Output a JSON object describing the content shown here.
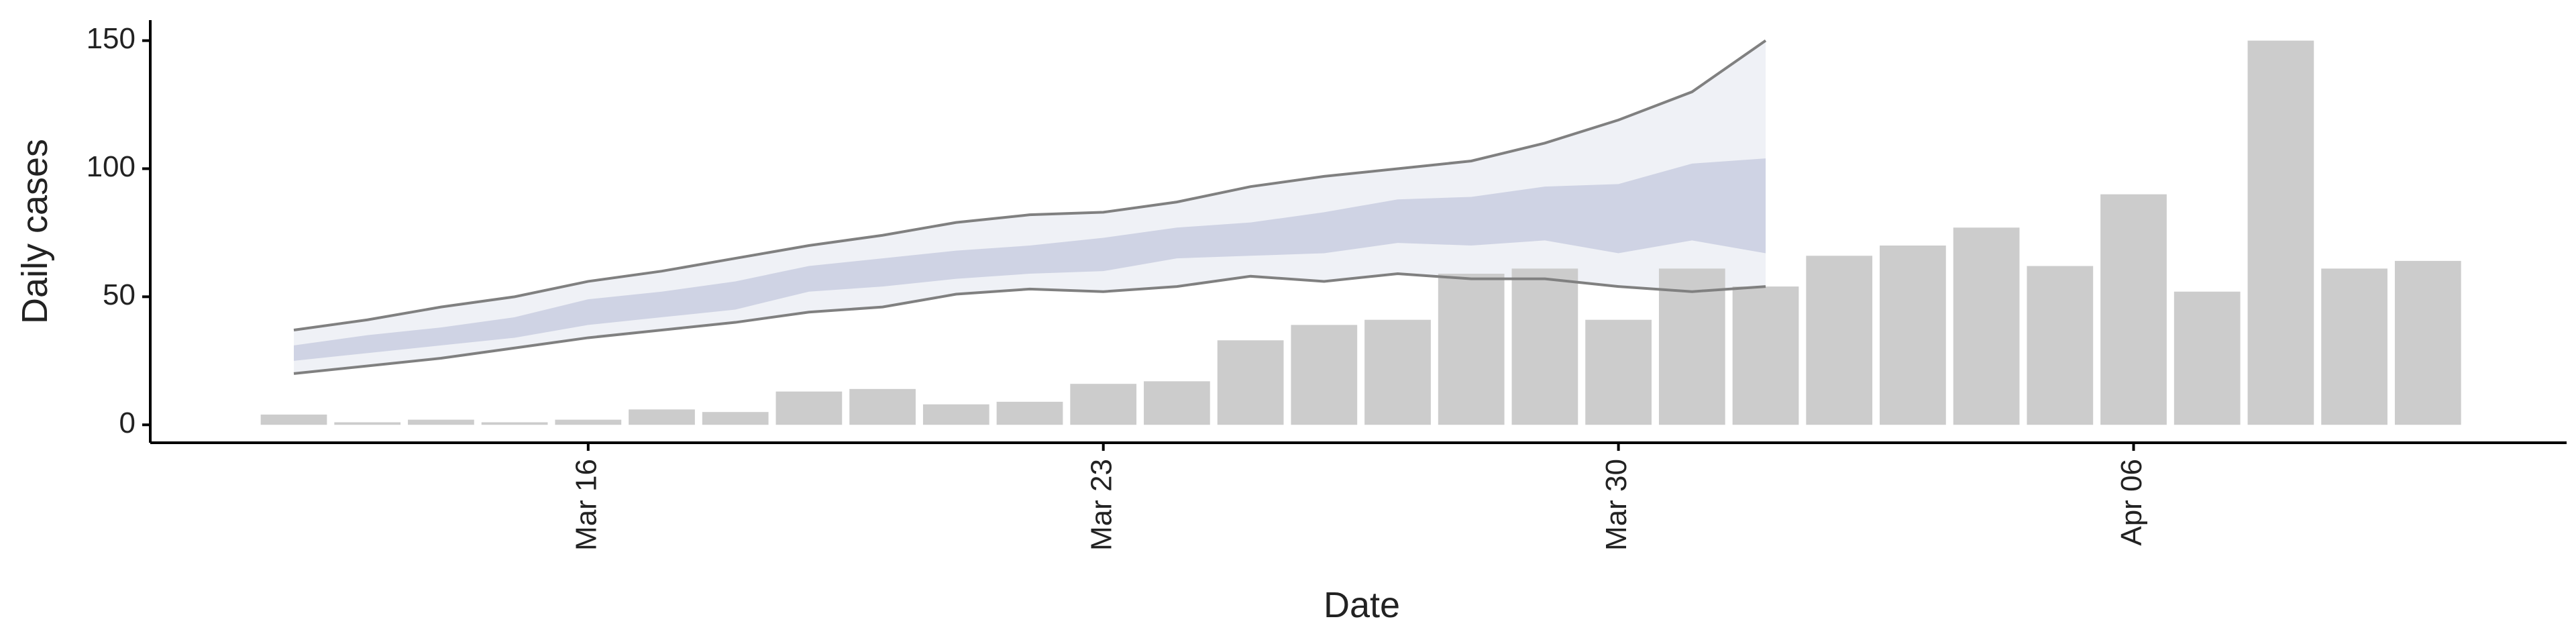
{
  "chart_data": {
    "type": "bar",
    "x_label": "Date",
    "y_label": "Daily cases",
    "categories": [
      null,
      null,
      null,
      null,
      "Mar 16",
      null,
      null,
      null,
      null,
      null,
      null,
      "Mar 23",
      null,
      null,
      null,
      null,
      null,
      null,
      "Mar 30",
      null,
      null,
      null,
      null,
      null,
      null,
      "Apr 06",
      null,
      null,
      null,
      null
    ],
    "values": [
      4,
      1,
      2,
      1,
      2,
      6,
      5,
      13,
      14,
      8,
      9,
      16,
      17,
      33,
      39,
      41,
      59,
      61,
      41,
      61,
      54,
      66,
      70,
      77,
      62,
      90,
      52,
      150,
      61,
      64
    ],
    "color": "#cccccc",
    "ribbons": [
      {
        "color": "#eceef4",
        "line_color": "#808080",
        "upper": [
          37,
          41,
          46,
          50,
          56,
          60,
          65,
          70,
          74,
          79,
          82,
          83,
          87,
          93,
          97,
          100,
          103,
          110,
          119,
          130,
          150,
          null,
          null,
          null,
          null,
          null,
          null,
          null,
          null,
          null
        ],
        "lower": [
          20,
          23,
          26,
          30,
          34,
          37,
          40,
          44,
          46,
          51,
          53,
          52,
          54,
          58,
          56,
          59,
          57,
          57,
          54,
          52,
          54,
          null,
          null,
          null,
          null,
          null,
          null,
          null,
          null,
          null
        ]
      },
      {
        "color": "#c9cee0",
        "upper": [
          31,
          35,
          38,
          42,
          49,
          52,
          56,
          62,
          65,
          68,
          70,
          73,
          77,
          79,
          83,
          88,
          89,
          93,
          94,
          102,
          104,
          null,
          null,
          null,
          null,
          null,
          null,
          null,
          null,
          null
        ],
        "lower": [
          25,
          28,
          31,
          34,
          39,
          42,
          45,
          52,
          54,
          57,
          59,
          60,
          65,
          66,
          67,
          71,
          70,
          72,
          67,
          72,
          67,
          null,
          null,
          null,
          null,
          null,
          null,
          null,
          null,
          null
        ]
      }
    ],
    "ylim": [
      -7,
      158
    ],
    "yticks": [
      0,
      50,
      100,
      150
    ]
  }
}
